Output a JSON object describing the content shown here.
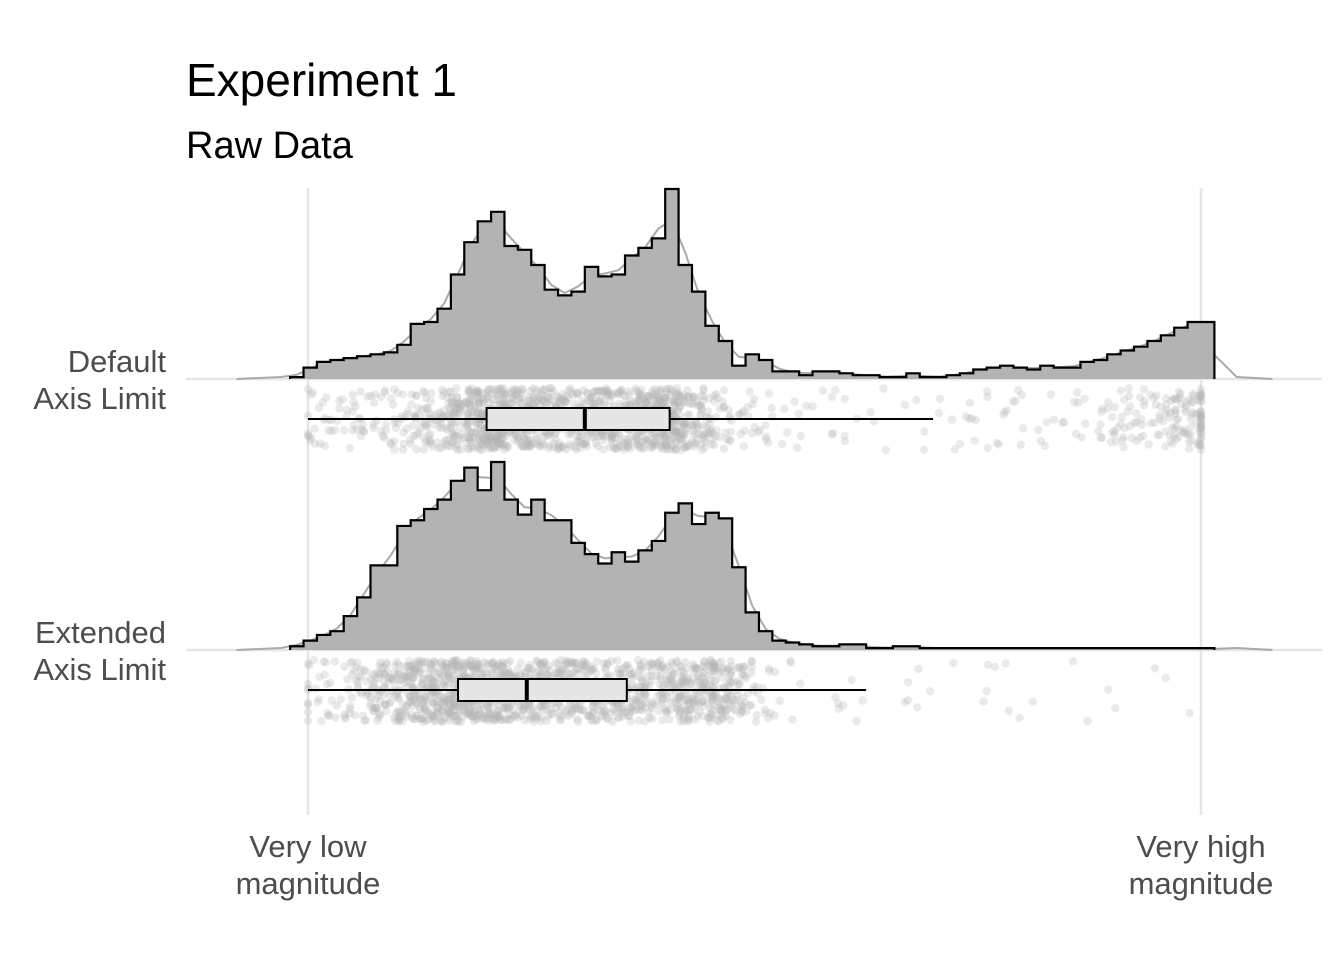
{
  "chart_data": {
    "type": "raincloud",
    "title": "Experiment 1",
    "subtitle": "Raw Data",
    "x_range": [
      -0.135,
      1.135
    ],
    "x_ticks": [
      {
        "value": 0,
        "label_lines": [
          "Very low",
          "magnitude"
        ]
      },
      {
        "value": 1,
        "label_lines": [
          "Very high",
          "magnitude"
        ]
      }
    ],
    "grid": true,
    "colors": {
      "hist_fill": "#b3b3b3",
      "hist_line": "#000000",
      "density_line": "#aaaaaa",
      "grid": "#e6e6e6",
      "box_fill": "#e6e6e6",
      "points": "#b5b5b5"
    },
    "series": [
      {
        "name_lines": [
          "Default",
          "Axis Limit"
        ],
        "bin_width": 0.015,
        "bin_start": -0.02,
        "hist_heights": [
          0.01,
          0.06,
          0.09,
          0.1,
          0.11,
          0.12,
          0.13,
          0.14,
          0.18,
          0.29,
          0.3,
          0.37,
          0.55,
          0.72,
          0.83,
          0.88,
          0.7,
          0.68,
          0.6,
          0.47,
          0.44,
          0.46,
          0.59,
          0.54,
          0.55,
          0.65,
          0.69,
          0.74,
          1.0,
          0.6,
          0.46,
          0.28,
          0.2,
          0.07,
          0.13,
          0.1,
          0.04,
          0.04,
          0.02,
          0.04,
          0.04,
          0.03,
          0.02,
          0.02,
          0.01,
          0.01,
          0.03,
          0.01,
          0.01,
          0.02,
          0.03,
          0.05,
          0.06,
          0.07,
          0.06,
          0.05,
          0.07,
          0.06,
          0.06,
          0.09,
          0.1,
          0.13,
          0.15,
          0.17,
          0.2,
          0.23,
          0.27,
          0.3,
          0.3
        ],
        "hist_end": 1.015,
        "box": {
          "whisker_low": 0.0,
          "q1": 0.2,
          "median": 0.31,
          "q3": 0.405,
          "whisker_high": 0.7
        },
        "n_points": 1500
      },
      {
        "name_lines": [
          "Extended",
          "Axis Limit"
        ],
        "bin_width": 0.015,
        "bin_start": -0.02,
        "hist_heights": [
          0.02,
          0.05,
          0.08,
          0.1,
          0.18,
          0.28,
          0.45,
          0.45,
          0.66,
          0.69,
          0.75,
          0.8,
          0.9,
          0.97,
          0.85,
          1.0,
          0.8,
          0.72,
          0.8,
          0.69,
          0.69,
          0.57,
          0.51,
          0.46,
          0.52,
          0.47,
          0.53,
          0.58,
          0.73,
          0.78,
          0.67,
          0.73,
          0.7,
          0.44,
          0.2,
          0.1,
          0.05,
          0.04,
          0.03,
          0.02,
          0.02,
          0.03,
          0.03,
          0.01,
          0.01,
          0.02,
          0.02,
          0.01,
          0.01,
          0.01,
          0.01,
          0.01,
          0.01,
          0.01,
          0.01,
          0.01,
          0.01,
          0.01,
          0.01,
          0.01,
          0.01,
          0.01,
          0.01,
          0.01,
          0.01,
          0.01,
          0.01,
          0.01,
          0.01
        ],
        "hist_end": 1.015,
        "box": {
          "whisker_low": 0.0,
          "q1": 0.168,
          "median": 0.245,
          "q3": 0.357,
          "whisker_high": 0.625
        },
        "n_points": 1500
      }
    ]
  }
}
